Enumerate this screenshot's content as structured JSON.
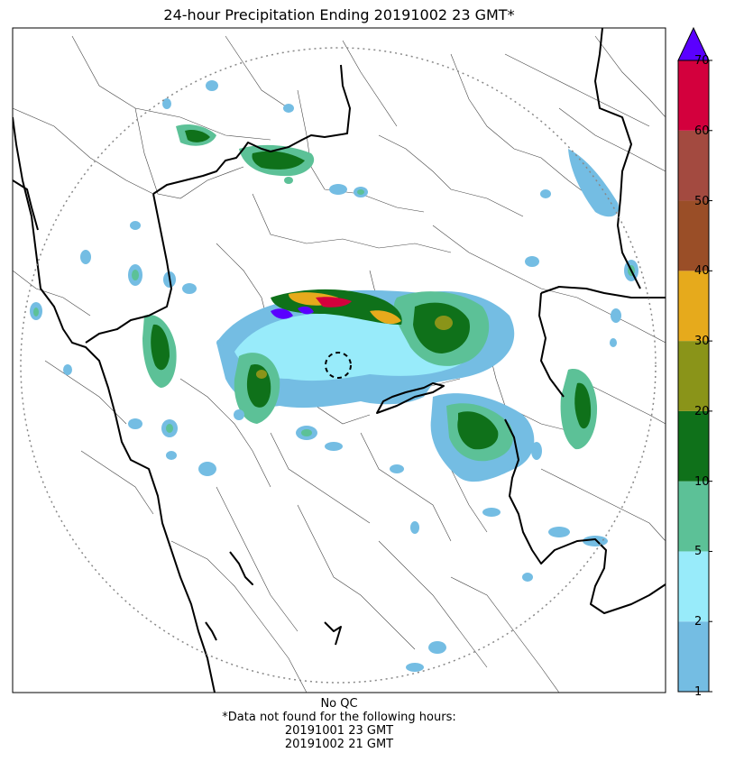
{
  "title": "24-hour Precipitation Ending 20191002 23 GMT*",
  "colorbar": {
    "ticks": [
      "1",
      "2",
      "5",
      "10",
      "20",
      "30",
      "40",
      "50",
      "60",
      "70"
    ],
    "colors": [
      "#74bde3",
      "#98ebfa",
      "#5cc197",
      "#0f711a",
      "#8a9419",
      "#e6aa1c",
      "#9a4e27",
      "#a34a40",
      "#d3003d"
    ],
    "overflow_color": "#5a00ff"
  },
  "footer": {
    "line1": "No QC",
    "line2": "*Data not found for the following hours:",
    "line3": "20191001 23 GMT",
    "line4": "20191002 21 GMT"
  }
}
